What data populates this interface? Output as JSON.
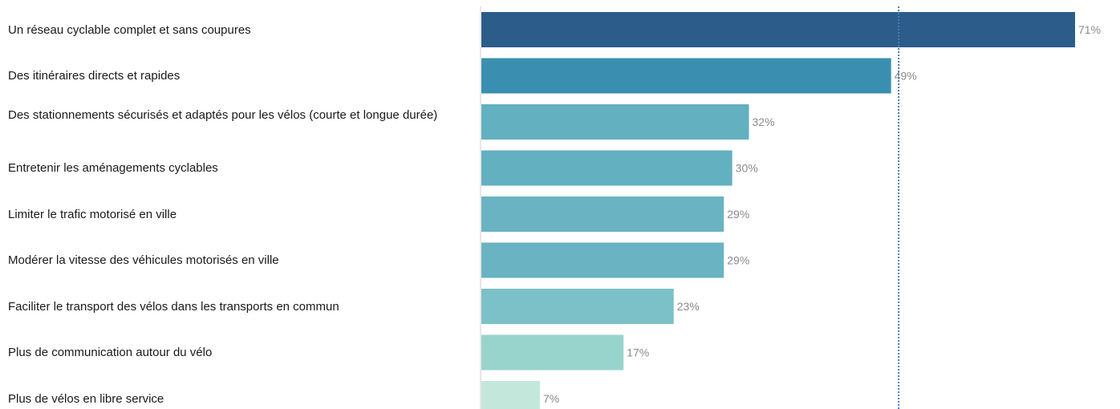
{
  "chart_data": {
    "type": "bar",
    "orientation": "horizontal",
    "categories": [
      "Un réseau cyclable complet et sans coupures",
      "Des itinéraires directs et rapides",
      "Des stationnements sécurisés et adaptés pour les vélos (courte et longue durée)",
      "Entretenir les aménagements cyclables",
      "Limiter le trafic motorisé en ville",
      "Modérer la vitesse des véhicules motorisés en ville",
      "Faciliter le transport des vélos dans les transports en commun",
      "Plus de communication autour du vélo",
      "Plus de vélos en libre service"
    ],
    "values": [
      71,
      49,
      32,
      30,
      29,
      29,
      23,
      17,
      7
    ],
    "value_labels": [
      "71%",
      "49%",
      "32%",
      "30%",
      "29%",
      "29%",
      "23%",
      "17%",
      "7%"
    ],
    "colors": [
      "#2b5c8a",
      "#3a8fb0",
      "#63b0c0",
      "#63b0c0",
      "#6ab3c2",
      "#6ab3c2",
      "#7cc1c7",
      "#98d4cc",
      "#c3e8db"
    ],
    "reference_line_value": 50,
    "xlim": [
      0,
      72
    ],
    "title": "",
    "xlabel": "",
    "ylabel": "",
    "grid": false,
    "legend": false
  }
}
